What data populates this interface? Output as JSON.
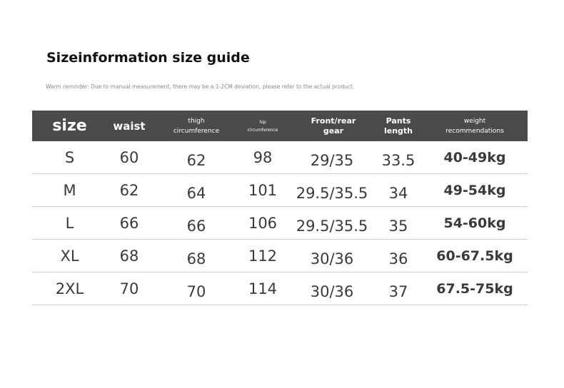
{
  "title": "Sizeinformation size guide",
  "reminder": "Warm reminder: Due to manual measurement, there may be a 1-2CM deviation, please refer to the actual product.",
  "header": {
    "size": "size",
    "waist": "waist",
    "thigh_line1": "thigh",
    "thigh_line2": "circumference",
    "hip_line1": "hip",
    "hip_line2": "circumference",
    "front_line1": "Front/rear",
    "front_line2": "gear",
    "pants_line1": "Pants",
    "pants_line2": "length",
    "weight_line1": "weight",
    "weight_line2": "recommendations"
  },
  "rows": [
    {
      "size": "S",
      "waist": "60",
      "thigh": "62",
      "hip": "98",
      "front": "29/35",
      "pants": "33.5",
      "weight": "40-49kg"
    },
    {
      "size": "M",
      "waist": "62",
      "thigh": "64",
      "hip": "101",
      "front": "29.5/35.5",
      "pants": "34",
      "weight": "49-54kg"
    },
    {
      "size": "L",
      "waist": "66",
      "thigh": "66",
      "hip": "106",
      "front": "29.5/35.5",
      "pants": "35",
      "weight": "54-60kg"
    },
    {
      "size": "XL",
      "waist": "68",
      "thigh": "68",
      "hip": "112",
      "front": "30/36",
      "pants": "36",
      "weight": "60-67.5kg"
    },
    {
      "size": "2XL",
      "waist": "70",
      "thigh": "70",
      "hip": "114",
      "front": "30/36",
      "pants": "37",
      "weight": "67.5-75kg"
    }
  ],
  "colors": {
    "header_bg": "#4a4a4a",
    "header_text": "#ffffff",
    "row_divider": "#cfcfcf"
  }
}
